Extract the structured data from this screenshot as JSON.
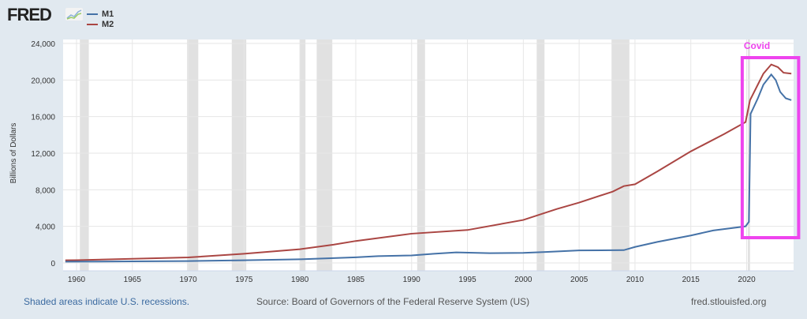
{
  "header": {
    "logo": "FRED"
  },
  "footer": {
    "recessions": "Shaded areas indicate U.S. recessions.",
    "source": "Source: Board of Governors of the Federal Reserve System (US)",
    "site": "fred.stlouisfed.org"
  },
  "annotation": {
    "label": "Covid",
    "color": "#ee44ee"
  },
  "chart_data": {
    "type": "line",
    "title": "",
    "xlabel": "",
    "ylabel": "Billions of Dollars",
    "xlim": [
      1958.8,
      2024.2
    ],
    "ylim": [
      0,
      24000
    ],
    "xticks": [
      1960,
      1965,
      1970,
      1975,
      1980,
      1985,
      1990,
      1995,
      2000,
      2005,
      2010,
      2015,
      2020
    ],
    "yticks": [
      0,
      4000,
      8000,
      12000,
      16000,
      20000,
      24000
    ],
    "ytick_labels": [
      "0",
      "4,000",
      "8,000",
      "12,000",
      "16,000",
      "20,000",
      "24,000"
    ],
    "legend": "top-left",
    "recessions": [
      [
        1960.3,
        1961.1
      ],
      [
        1969.9,
        1970.9
      ],
      [
        1973.9,
        1975.2
      ],
      [
        1980.0,
        1980.5
      ],
      [
        1981.5,
        1982.9
      ],
      [
        1990.5,
        1991.2
      ],
      [
        2001.2,
        2001.9
      ],
      [
        2007.9,
        2009.5
      ],
      [
        2020.1,
        2020.3
      ]
    ],
    "series": [
      {
        "name": "M1",
        "color": "#4572a7",
        "points": [
          [
            1959,
            140
          ],
          [
            1965,
            170
          ],
          [
            1970,
            210
          ],
          [
            1975,
            290
          ],
          [
            1980,
            400
          ],
          [
            1985,
            620
          ],
          [
            1987,
            740
          ],
          [
            1990,
            820
          ],
          [
            1992,
            1000
          ],
          [
            1994,
            1150
          ],
          [
            1997,
            1070
          ],
          [
            2000,
            1100
          ],
          [
            2002,
            1200
          ],
          [
            2005,
            1370
          ],
          [
            2009,
            1400
          ],
          [
            2010,
            1750
          ],
          [
            2012,
            2300
          ],
          [
            2015,
            3000
          ],
          [
            2017,
            3550
          ],
          [
            2019.9,
            4000
          ],
          [
            2020.2,
            4500
          ],
          [
            2020.35,
            16300
          ],
          [
            2021,
            18000
          ],
          [
            2021.5,
            19500
          ],
          [
            2022.2,
            20600
          ],
          [
            2022.6,
            20000
          ],
          [
            2023,
            18700
          ],
          [
            2023.5,
            18000
          ],
          [
            2024,
            17800
          ]
        ]
      },
      {
        "name": "M2",
        "color": "#aa4643",
        "points": [
          [
            1959,
            290
          ],
          [
            1960,
            300
          ],
          [
            1965,
            450
          ],
          [
            1970,
            600
          ],
          [
            1975,
            1000
          ],
          [
            1980,
            1500
          ],
          [
            1983,
            2000
          ],
          [
            1985,
            2400
          ],
          [
            1990,
            3200
          ],
          [
            1995,
            3600
          ],
          [
            2000,
            4700
          ],
          [
            2003,
            5900
          ],
          [
            2005,
            6600
          ],
          [
            2008,
            7800
          ],
          [
            2009,
            8400
          ],
          [
            2010,
            8600
          ],
          [
            2012,
            10000
          ],
          [
            2015,
            12200
          ],
          [
            2018,
            14100
          ],
          [
            2019.9,
            15400
          ],
          [
            2020.3,
            17800
          ],
          [
            2021,
            19500
          ],
          [
            2021.5,
            20700
          ],
          [
            2022.2,
            21700
          ],
          [
            2022.8,
            21400
          ],
          [
            2023.3,
            20800
          ],
          [
            2024,
            20700
          ]
        ]
      }
    ]
  }
}
